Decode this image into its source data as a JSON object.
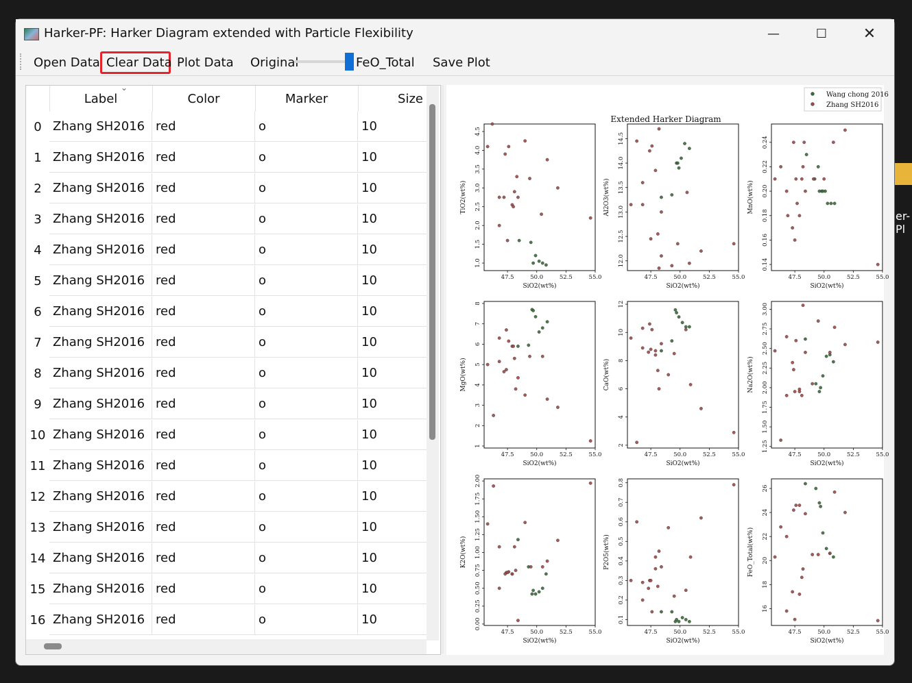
{
  "window": {
    "title": "Harker-PF: Harker Diagram extended with Particle Flexibility"
  },
  "desktop": {
    "folder_label": "er-Pl"
  },
  "toolbar": {
    "open_label": "Open Data",
    "clear_label": "Clear Data",
    "plot_label": "Plot Data",
    "original_label": "Original",
    "feo_label": "FeO_Total",
    "save_label": "Save Plot",
    "slider_value": 1
  },
  "table": {
    "columns": [
      "Label",
      "Color",
      "Marker",
      "Size"
    ],
    "rows": [
      {
        "index": "0",
        "label": "Zhang SH2016",
        "color": "red",
        "marker": "o",
        "size": "10"
      },
      {
        "index": "1",
        "label": "Zhang SH2016",
        "color": "red",
        "marker": "o",
        "size": "10"
      },
      {
        "index": "2",
        "label": "Zhang SH2016",
        "color": "red",
        "marker": "o",
        "size": "10"
      },
      {
        "index": "3",
        "label": "Zhang SH2016",
        "color": "red",
        "marker": "o",
        "size": "10"
      },
      {
        "index": "4",
        "label": "Zhang SH2016",
        "color": "red",
        "marker": "o",
        "size": "10"
      },
      {
        "index": "5",
        "label": "Zhang SH2016",
        "color": "red",
        "marker": "o",
        "size": "10"
      },
      {
        "index": "6",
        "label": "Zhang SH2016",
        "color": "red",
        "marker": "o",
        "size": "10"
      },
      {
        "index": "7",
        "label": "Zhang SH2016",
        "color": "red",
        "marker": "o",
        "size": "10"
      },
      {
        "index": "8",
        "label": "Zhang SH2016",
        "color": "red",
        "marker": "o",
        "size": "10"
      },
      {
        "index": "9",
        "label": "Zhang SH2016",
        "color": "red",
        "marker": "o",
        "size": "10"
      },
      {
        "index": "10",
        "label": "Zhang SH2016",
        "color": "red",
        "marker": "o",
        "size": "10"
      },
      {
        "index": "11",
        "label": "Zhang SH2016",
        "color": "red",
        "marker": "o",
        "size": "10"
      },
      {
        "index": "12",
        "label": "Zhang SH2016",
        "color": "red",
        "marker": "o",
        "size": "10"
      },
      {
        "index": "13",
        "label": "Zhang SH2016",
        "color": "red",
        "marker": "o",
        "size": "10"
      },
      {
        "index": "14",
        "label": "Zhang SH2016",
        "color": "red",
        "marker": "o",
        "size": "10"
      },
      {
        "index": "15",
        "label": "Zhang SH2016",
        "color": "red",
        "marker": "o",
        "size": "10"
      },
      {
        "index": "16",
        "label": "Zhang SH2016",
        "color": "red",
        "marker": "o",
        "size": "10"
      }
    ]
  },
  "chart_data": {
    "type": "scatter",
    "title": "Extended Harker Diagram",
    "legend": {
      "placement": "top-right",
      "entries": [
        {
          "name": "Wang chong 2016",
          "color": "#3a6b3a"
        },
        {
          "name": "Zhang SH2016",
          "color": "#9a4a4a"
        }
      ]
    },
    "xlabel": "SiO2(wt%)",
    "xlim": [
      45.5,
      55.0
    ],
    "xticks": [
      47.5,
      50.0,
      52.5,
      55.0
    ],
    "subplots": [
      {
        "ylabel": "TiO2(wt%)",
        "ylim": [
          0.8,
          4.7
        ],
        "yticks": [
          1.0,
          1.5,
          2.0,
          2.5,
          3.0,
          3.5,
          4.0,
          4.5
        ],
        "series": [
          {
            "name": "Wang chong 2016",
            "x": [
              48.5,
              49.5,
              49.7,
              49.9,
              50.2,
              50.5,
              50.8
            ],
            "y": [
              1.6,
              1.55,
              1.0,
              1.2,
              1.05,
              1.0,
              0.95
            ]
          },
          {
            "name": "Zhang SH2016",
            "x": [
              45.8,
              46.2,
              46.8,
              47.3,
              47.6,
              47.9,
              48.1,
              48.3,
              48.0,
              48.4,
              47.2,
              46.8,
              47.5,
              49.0,
              49.4,
              50.4,
              50.9,
              51.8,
              54.6
            ],
            "y": [
              4.1,
              4.7,
              2.75,
              3.9,
              4.1,
              2.55,
              2.9,
              3.3,
              2.5,
              2.75,
              2.75,
              2.0,
              1.6,
              4.25,
              3.25,
              2.3,
              3.75,
              3.0,
              2.2
            ]
          }
        ]
      },
      {
        "ylabel": "Al2O3(wt%)",
        "ylim": [
          11.8,
          14.8
        ],
        "yticks": [
          12.0,
          12.5,
          13.0,
          13.5,
          14.0,
          14.5
        ],
        "series": [
          {
            "name": "Wang chong 2016",
            "x": [
              48.4,
              49.3,
              49.7,
              49.8,
              50.1,
              50.4,
              50.8,
              49.9
            ],
            "y": [
              13.3,
              13.35,
              14.0,
              14.0,
              14.1,
              14.4,
              14.3,
              13.9
            ]
          },
          {
            "name": "Zhang SH2016",
            "x": [
              45.8,
              46.3,
              46.8,
              47.4,
              47.6,
              47.9,
              48.2,
              48.4,
              48.4,
              48.2,
              46.8,
              48.1,
              47.5,
              49.3,
              49.8,
              50.6,
              50.8,
              51.8,
              54.6
            ],
            "y": [
              13.15,
              14.45,
              13.6,
              14.25,
              14.35,
              13.85,
              14.7,
              13.0,
              12.1,
              11.85,
              13.15,
              12.55,
              12.45,
              11.9,
              12.35,
              13.4,
              11.95,
              12.2,
              12.35
            ]
          }
        ]
      },
      {
        "ylabel": "MnO(wt%)",
        "ylim": [
          0.135,
          0.255
        ],
        "yticks": [
          0.14,
          0.16,
          0.18,
          0.2,
          0.22,
          0.24
        ],
        "series": [
          {
            "name": "Wang chong 2016",
            "x": [
              48.5,
              49.2,
              49.5,
              49.6,
              49.8,
              50.1,
              50.3,
              50.6,
              50.9,
              49.9
            ],
            "y": [
              0.23,
              0.21,
              0.22,
              0.2,
              0.2,
              0.2,
              0.19,
              0.19,
              0.19,
              0.2
            ]
          },
          {
            "name": "Zhang SH2016",
            "x": [
              45.8,
              46.3,
              46.8,
              47.4,
              47.6,
              47.9,
              48.2,
              48.4,
              48.1,
              46.9,
              47.3,
              47.5,
              49.1,
              50.0,
              50.8,
              51.8,
              54.6,
              48.3,
              47.7
            ],
            "y": [
              0.21,
              0.22,
              0.2,
              0.24,
              0.21,
              0.18,
              0.22,
              0.2,
              0.21,
              0.18,
              0.17,
              0.16,
              0.21,
              0.21,
              0.24,
              0.25,
              0.14,
              0.24,
              0.19
            ]
          }
        ]
      },
      {
        "ylabel": "MgO(wt%)",
        "ylim": [
          0.9,
          8.1
        ],
        "yticks": [
          1,
          2,
          3,
          4,
          5,
          6,
          7,
          8
        ],
        "series": [
          {
            "name": "Wang chong 2016",
            "x": [
              48.4,
              49.3,
              49.6,
              49.7,
              49.9,
              50.2,
              50.5,
              50.9
            ],
            "y": [
              5.9,
              5.95,
              7.7,
              7.65,
              7.35,
              6.6,
              6.8,
              7.1
            ]
          },
          {
            "name": "Zhang SH2016",
            "x": [
              45.8,
              46.3,
              46.8,
              47.4,
              47.6,
              47.9,
              48.2,
              48.4,
              48.1,
              46.8,
              47.2,
              47.4,
              49.0,
              49.4,
              50.5,
              50.9,
              51.8,
              54.6,
              48.0
            ],
            "y": [
              5.0,
              2.5,
              6.3,
              6.7,
              6.15,
              5.9,
              3.8,
              4.35,
              5.3,
              5.15,
              4.65,
              4.75,
              3.5,
              5.4,
              5.4,
              3.3,
              2.9,
              1.25,
              5.9
            ]
          }
        ]
      },
      {
        "ylabel": "CaO(wt%)",
        "ylim": [
          1.8,
          12.2
        ],
        "yticks": [
          2,
          4,
          6,
          8,
          10,
          12
        ],
        "series": [
          {
            "name": "Wang chong 2016",
            "x": [
              48.4,
              49.3,
              49.6,
              49.7,
              49.9,
              50.2,
              50.5,
              50.8
            ],
            "y": [
              8.7,
              9.4,
              11.6,
              11.4,
              11.1,
              10.7,
              10.4,
              10.4
            ]
          },
          {
            "name": "Zhang SH2016",
            "x": [
              45.8,
              46.3,
              46.8,
              47.4,
              47.6,
              47.9,
              48.2,
              48.4,
              48.1,
              46.8,
              47.3,
              47.5,
              49.0,
              49.5,
              50.5,
              50.9,
              51.8,
              54.6,
              47.9
            ],
            "y": [
              9.6,
              2.2,
              8.9,
              10.6,
              10.2,
              8.4,
              6.0,
              9.2,
              7.3,
              10.3,
              8.6,
              8.8,
              7.0,
              8.5,
              10.2,
              6.3,
              4.6,
              2.9,
              8.7
            ]
          }
        ]
      },
      {
        "ylabel": "Na2O(wt%)",
        "ylim": [
          1.23,
          3.1
        ],
        "yticks": [
          1.25,
          1.5,
          1.75,
          2.0,
          2.25,
          2.5,
          2.75,
          3.0
        ],
        "series": [
          {
            "name": "Wang chong 2016",
            "x": [
              48.4,
              49.3,
              49.6,
              49.7,
              49.9,
              50.2,
              50.5,
              50.8
            ],
            "y": [
              2.62,
              2.05,
              1.95,
              2.0,
              2.15,
              2.4,
              2.42,
              2.33
            ]
          },
          {
            "name": "Zhang SH2016",
            "x": [
              45.8,
              46.3,
              46.8,
              47.4,
              47.6,
              47.9,
              48.2,
              48.4,
              48.1,
              46.8,
              47.3,
              47.5,
              49.0,
              49.5,
              50.5,
              50.9,
              51.8,
              54.6,
              47.9
            ],
            "y": [
              2.47,
              1.33,
              1.9,
              2.23,
              2.6,
              1.98,
              3.05,
              2.45,
              1.9,
              2.65,
              2.32,
              1.95,
              2.05,
              2.85,
              2.45,
              2.77,
              2.55,
              2.58,
              1.95
            ]
          }
        ]
      },
      {
        "ylabel": "K2O(wt%)",
        "ylim": [
          -0.02,
          2.03
        ],
        "yticks": [
          0.0,
          0.25,
          0.5,
          0.75,
          1.0,
          1.25,
          1.5,
          1.75,
          2.0
        ],
        "series": [
          {
            "name": "Wang chong 2016",
            "x": [
              48.4,
              49.3,
              49.6,
              49.7,
              49.9,
              50.2,
              50.5,
              50.8
            ],
            "y": [
              1.18,
              0.8,
              0.42,
              0.47,
              0.42,
              0.45,
              0.5,
              0.7
            ]
          },
          {
            "name": "Zhang SH2016",
            "x": [
              45.8,
              46.3,
              46.8,
              47.4,
              47.6,
              47.9,
              48.2,
              48.4,
              48.1,
              46.8,
              47.3,
              47.5,
              49.0,
              49.5,
              50.5,
              50.9,
              51.8,
              54.6,
              47.9
            ],
            "y": [
              1.4,
              1.93,
              1.08,
              0.72,
              0.73,
              0.7,
              0.75,
              0.05,
              1.08,
              0.5,
              0.7,
              0.72,
              1.42,
              0.8,
              0.8,
              0.88,
              1.17,
              1.97,
              0.7
            ]
          }
        ]
      },
      {
        "ylabel": "P2O5(wt%)",
        "ylim": [
          0.07,
          0.82
        ],
        "yticks": [
          0.1,
          0.2,
          0.3,
          0.4,
          0.5,
          0.6,
          0.7,
          0.8
        ],
        "series": [
          {
            "name": "Wang chong 2016",
            "x": [
              48.4,
              49.3,
              49.6,
              49.7,
              49.9,
              50.2,
              50.5,
              50.8
            ],
            "y": [
              0.14,
              0.14,
              0.09,
              0.1,
              0.09,
              0.11,
              0.1,
              0.09
            ]
          },
          {
            "name": "Zhang SH2016",
            "x": [
              45.8,
              46.3,
              46.8,
              47.4,
              47.6,
              47.9,
              48.2,
              48.4,
              48.1,
              46.8,
              47.3,
              47.5,
              49.0,
              49.5,
              50.5,
              50.9,
              51.8,
              54.6,
              47.9
            ],
            "y": [
              0.3,
              0.6,
              0.2,
              0.3,
              0.14,
              0.42,
              0.45,
              0.37,
              0.27,
              0.29,
              0.26,
              0.3,
              0.57,
              0.22,
              0.25,
              0.42,
              0.62,
              0.79,
              0.36
            ]
          }
        ]
      },
      {
        "ylabel": "FeO_Total(wt%)",
        "ylim": [
          14.6,
          26.8
        ],
        "yticks": [
          16,
          18,
          20,
          22,
          24,
          26
        ],
        "series": [
          {
            "name": "Wang chong 2016",
            "x": [
              48.4,
              49.3,
              49.6,
              49.7,
              49.9,
              50.2,
              50.5,
              50.8
            ],
            "y": [
              26.4,
              26.0,
              24.8,
              24.5,
              22.3,
              21.0,
              20.6,
              20.3
            ]
          },
          {
            "name": "Zhang SH2016",
            "x": [
              45.8,
              46.3,
              46.8,
              47.4,
              47.6,
              47.9,
              48.2,
              48.4,
              48.1,
              46.8,
              47.3,
              47.5,
              49.0,
              49.5,
              50.5,
              50.9,
              51.8,
              54.6,
              47.9
            ],
            "y": [
              20.3,
              22.8,
              15.8,
              24.2,
              24.6,
              17.2,
              19.3,
              23.9,
              18.6,
              22.0,
              17.4,
              15.1,
              20.5,
              20.5,
              20.6,
              25.7,
              24.0,
              15.0,
              24.6
            ]
          }
        ]
      }
    ]
  }
}
